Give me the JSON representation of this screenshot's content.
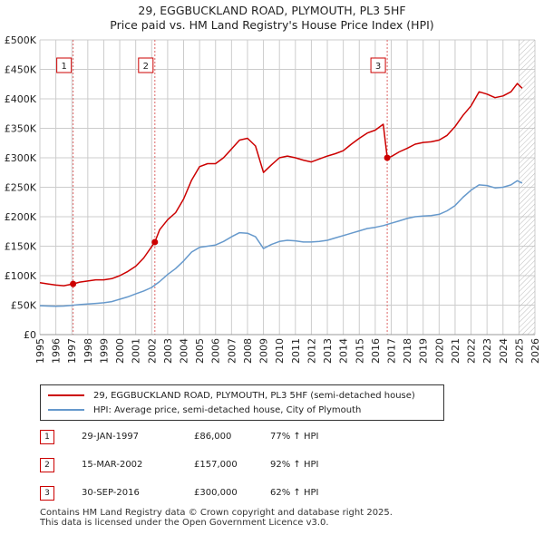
{
  "title": {
    "line1": "29, EGGBUCKLAND ROAD, PLYMOUTH, PL3 5HF",
    "line2": "Price paid vs. HM Land Registry's House Price Index (HPI)"
  },
  "chart_data": {
    "type": "line",
    "title": "29, EGGBUCKLAND ROAD, PLYMOUTH, PL3 5HF — Price paid vs. HM Land Registry's House Price Index (HPI)",
    "xlim": [
      1995,
      2026
    ],
    "ylim": [
      0,
      500000
    ],
    "x_ticks": [
      1995,
      1996,
      1997,
      1998,
      1999,
      2000,
      2001,
      2002,
      2003,
      2004,
      2005,
      2006,
      2007,
      2008,
      2009,
      2010,
      2011,
      2012,
      2013,
      2014,
      2015,
      2016,
      2017,
      2018,
      2019,
      2020,
      2021,
      2022,
      2023,
      2024,
      2025,
      2026
    ],
    "y_ticks": [
      {
        "value": 0,
        "label": "£0"
      },
      {
        "value": 50000,
        "label": "£50K"
      },
      {
        "value": 100000,
        "label": "£100K"
      },
      {
        "value": 150000,
        "label": "£150K"
      },
      {
        "value": 200000,
        "label": "£200K"
      },
      {
        "value": 250000,
        "label": "£250K"
      },
      {
        "value": 300000,
        "label": "£300K"
      },
      {
        "value": 350000,
        "label": "£350K"
      },
      {
        "value": 400000,
        "label": "£400K"
      },
      {
        "value": 450000,
        "label": "£450K"
      },
      {
        "value": 500000,
        "label": "£500K"
      }
    ],
    "grid": true,
    "series": [
      {
        "name": "29, EGGBUCKLAND ROAD, PLYMOUTH, PL3 5HF (semi-detached house)",
        "color": "#cc0000",
        "points": [
          [
            1995.0,
            88000
          ],
          [
            1995.5,
            86000
          ],
          [
            1996.0,
            84000
          ],
          [
            1996.5,
            83000
          ],
          [
            1997.08,
            86000
          ],
          [
            1997.5,
            89000
          ],
          [
            1998.0,
            91000
          ],
          [
            1998.5,
            93000
          ],
          [
            1999.0,
            93000
          ],
          [
            1999.5,
            95000
          ],
          [
            2000.0,
            100000
          ],
          [
            2000.5,
            107000
          ],
          [
            2001.0,
            116000
          ],
          [
            2001.5,
            130000
          ],
          [
            2002.2,
            157000
          ],
          [
            2002.5,
            178000
          ],
          [
            2003.0,
            195000
          ],
          [
            2003.5,
            207000
          ],
          [
            2004.0,
            230000
          ],
          [
            2004.5,
            262000
          ],
          [
            2005.0,
            285000
          ],
          [
            2005.5,
            290000
          ],
          [
            2006.0,
            290000
          ],
          [
            2006.5,
            300000
          ],
          [
            2007.0,
            315000
          ],
          [
            2007.5,
            330000
          ],
          [
            2008.0,
            333000
          ],
          [
            2008.5,
            320000
          ],
          [
            2009.0,
            275000
          ],
          [
            2009.5,
            288000
          ],
          [
            2010.0,
            300000
          ],
          [
            2010.5,
            303000
          ],
          [
            2011.0,
            300000
          ],
          [
            2011.5,
            296000
          ],
          [
            2012.0,
            293000
          ],
          [
            2012.5,
            298000
          ],
          [
            2013.0,
            303000
          ],
          [
            2013.5,
            307000
          ],
          [
            2014.0,
            312000
          ],
          [
            2014.5,
            323000
          ],
          [
            2015.0,
            333000
          ],
          [
            2015.5,
            342000
          ],
          [
            2016.0,
            347000
          ],
          [
            2016.5,
            357000
          ],
          [
            2016.75,
            300000
          ],
          [
            2017.0,
            302000
          ],
          [
            2017.5,
            310000
          ],
          [
            2018.0,
            316000
          ],
          [
            2018.5,
            323000
          ],
          [
            2019.0,
            326000
          ],
          [
            2019.5,
            327000
          ],
          [
            2020.0,
            330000
          ],
          [
            2020.5,
            338000
          ],
          [
            2021.0,
            353000
          ],
          [
            2021.5,
            372000
          ],
          [
            2022.0,
            388000
          ],
          [
            2022.5,
            412000
          ],
          [
            2023.0,
            408000
          ],
          [
            2023.5,
            402000
          ],
          [
            2024.0,
            405000
          ],
          [
            2024.5,
            412000
          ],
          [
            2024.9,
            426000
          ],
          [
            2025.2,
            418000
          ]
        ]
      },
      {
        "name": "HPI: Average price, semi-detached house, City of Plymouth",
        "color": "#6699cc",
        "points": [
          [
            1995.0,
            49000
          ],
          [
            1995.5,
            48500
          ],
          [
            1996.0,
            48000
          ],
          [
            1996.5,
            48500
          ],
          [
            1997.0,
            49500
          ],
          [
            1997.5,
            51000
          ],
          [
            1998.0,
            52000
          ],
          [
            1998.5,
            53000
          ],
          [
            1999.0,
            54000
          ],
          [
            1999.5,
            56000
          ],
          [
            2000.0,
            60000
          ],
          [
            2000.5,
            64000
          ],
          [
            2001.0,
            69000
          ],
          [
            2001.5,
            74000
          ],
          [
            2002.0,
            80000
          ],
          [
            2002.5,
            90000
          ],
          [
            2003.0,
            102000
          ],
          [
            2003.5,
            112000
          ],
          [
            2004.0,
            125000
          ],
          [
            2004.5,
            140000
          ],
          [
            2005.0,
            148000
          ],
          [
            2005.5,
            150000
          ],
          [
            2006.0,
            152000
          ],
          [
            2006.5,
            158000
          ],
          [
            2007.0,
            166000
          ],
          [
            2007.5,
            173000
          ],
          [
            2008.0,
            172000
          ],
          [
            2008.5,
            166000
          ],
          [
            2009.0,
            146000
          ],
          [
            2009.5,
            153000
          ],
          [
            2010.0,
            158000
          ],
          [
            2010.5,
            160000
          ],
          [
            2011.0,
            159000
          ],
          [
            2011.5,
            157000
          ],
          [
            2012.0,
            157000
          ],
          [
            2012.5,
            158000
          ],
          [
            2013.0,
            160000
          ],
          [
            2013.5,
            164000
          ],
          [
            2014.0,
            168000
          ],
          [
            2014.5,
            172000
          ],
          [
            2015.0,
            176000
          ],
          [
            2015.5,
            180000
          ],
          [
            2016.0,
            182000
          ],
          [
            2016.5,
            185000
          ],
          [
            2017.0,
            189000
          ],
          [
            2017.5,
            193000
          ],
          [
            2018.0,
            197000
          ],
          [
            2018.5,
            200000
          ],
          [
            2019.0,
            201000
          ],
          [
            2019.5,
            202000
          ],
          [
            2020.0,
            204000
          ],
          [
            2020.5,
            210000
          ],
          [
            2021.0,
            219000
          ],
          [
            2021.5,
            233000
          ],
          [
            2022.0,
            245000
          ],
          [
            2022.5,
            254000
          ],
          [
            2023.0,
            253000
          ],
          [
            2023.5,
            249000
          ],
          [
            2024.0,
            250000
          ],
          [
            2024.5,
            254000
          ],
          [
            2024.9,
            261000
          ],
          [
            2025.2,
            257000
          ]
        ]
      }
    ],
    "sales_markers": [
      {
        "label": "1",
        "x": 1997.08,
        "y": 86000
      },
      {
        "label": "2",
        "x": 2002.2,
        "y": 157000
      },
      {
        "label": "3",
        "x": 2016.75,
        "y": 300000
      }
    ],
    "hatched_region_start": 2025.0
  },
  "legend": {
    "property": "29, EGGBUCKLAND ROAD, PLYMOUTH, PL3 5HF (semi-detached house)",
    "hpi": "HPI: Average price, semi-detached house, City of Plymouth"
  },
  "sales": [
    {
      "num": "1",
      "date": "29-JAN-1997",
      "price": "£86,000",
      "hpi": "77% ↑ HPI"
    },
    {
      "num": "2",
      "date": "15-MAR-2002",
      "price": "£157,000",
      "hpi": "92% ↑ HPI"
    },
    {
      "num": "3",
      "date": "30-SEP-2016",
      "price": "£300,000",
      "hpi": "62% ↑ HPI"
    }
  ],
  "footer": {
    "line1": "Contains HM Land Registry data © Crown copyright and database right 2025.",
    "line2": "This data is licensed under the Open Government Licence v3.0."
  }
}
